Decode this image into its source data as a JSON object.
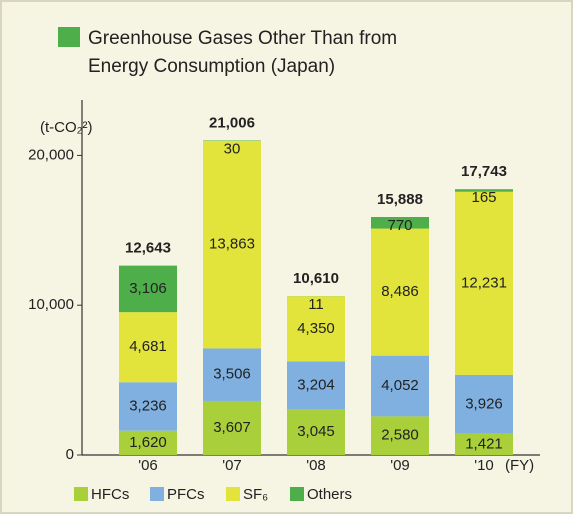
{
  "chart_data": {
    "type": "stacked-bar",
    "title": "Greenhouse Gases Other Than from Energy Consumption (Japan)",
    "unit": "(t-CO₂²)",
    "x_unit": "(FY)",
    "categories": [
      "'06",
      "'07",
      "'08",
      "'09",
      "'10"
    ],
    "series": [
      {
        "name": "HFCs",
        "color": "#a9cf3b",
        "values": [
          1620,
          3607,
          3045,
          2580,
          1421
        ],
        "value_labels": [
          "1,620",
          "3,607",
          "3,045",
          "2,580",
          "1,421"
        ]
      },
      {
        "name": "PFCs",
        "color": "#7fb0e0",
        "values": [
          3236,
          3506,
          3204,
          4052,
          3926
        ],
        "value_labels": [
          "3,236",
          "3,506",
          "3,204",
          "4,052",
          "3,926"
        ]
      },
      {
        "name": "SF₆",
        "color": "#e2e43c",
        "values": [
          4681,
          13863,
          4350,
          8486,
          12231
        ],
        "value_labels": [
          "4,681",
          "13,863",
          "4,350",
          "8,486",
          "12,231"
        ]
      },
      {
        "name": "Others",
        "color": "#4dae4a",
        "values": [
          3106,
          30,
          11,
          770,
          165
        ],
        "value_labels": [
          "3,106",
          "30",
          "11",
          "770",
          "165"
        ]
      }
    ],
    "totals": [
      12643,
      21006,
      10610,
      15888,
      17743
    ],
    "total_labels": [
      "12,643",
      "21,006",
      "10,610",
      "15,888",
      "17,743"
    ],
    "ylim": [
      0,
      23700
    ],
    "yticks": [
      0,
      {
        "value": 10000,
        "label": "10,000"
      },
      {
        "value": 20000,
        "label": "20,000"
      }
    ]
  }
}
